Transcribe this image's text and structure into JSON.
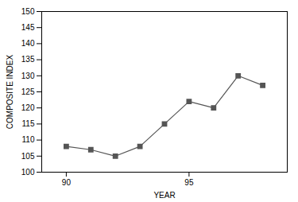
{
  "chart_data": {
    "type": "line",
    "x": [
      1990,
      1991,
      1992,
      1993,
      1994,
      1995,
      1996,
      1997,
      1998
    ],
    "values": [
      108,
      107,
      105,
      108,
      115,
      122,
      120,
      130,
      127
    ],
    "xlabel": "YEAR",
    "ylabel": "COMPOSITE INDEX",
    "xlim": [
      1989.0,
      1999.0
    ],
    "ylim": [
      100,
      150
    ],
    "xticks": [
      {
        "value": 1990,
        "label": "90"
      },
      {
        "value": 1995,
        "label": "95"
      }
    ],
    "yticks": [
      100,
      105,
      110,
      115,
      120,
      125,
      130,
      135,
      140,
      145,
      150
    ],
    "color": "#555555",
    "marker": "square",
    "grid": false
  }
}
